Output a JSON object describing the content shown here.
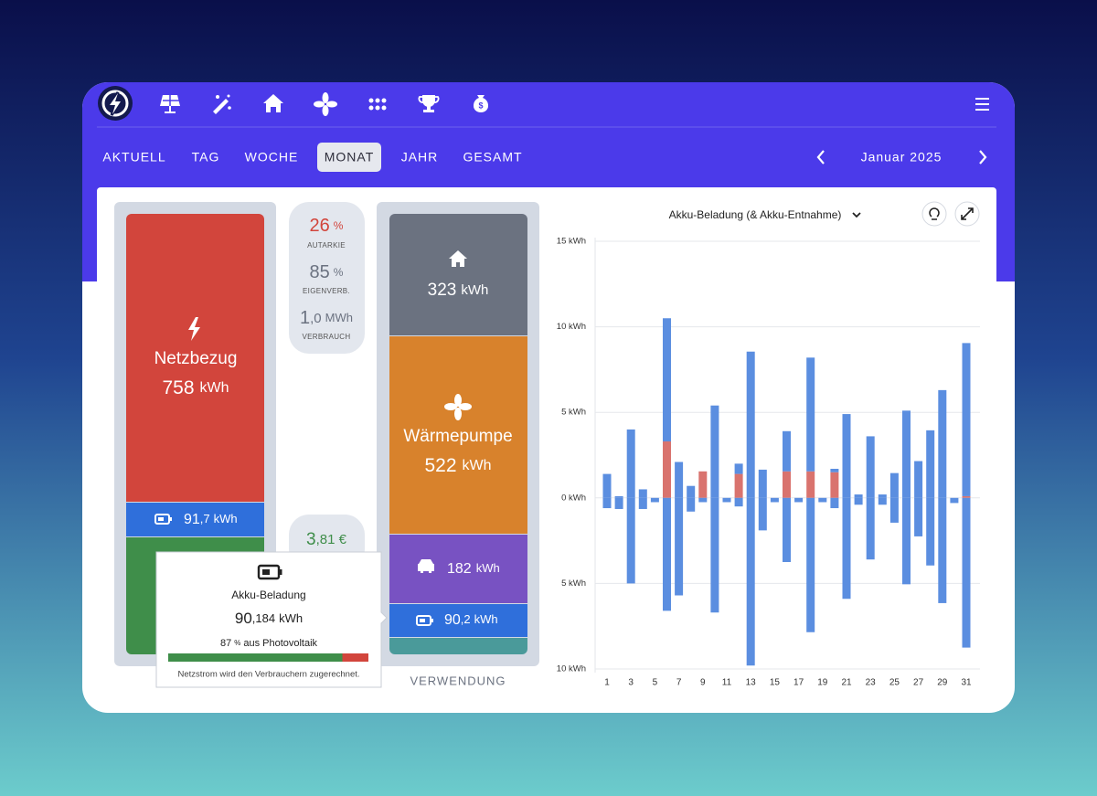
{
  "nav": {
    "tabs": [
      "AKTUELL",
      "TAG",
      "WOCHE",
      "MONAT",
      "JAHR",
      "GESAMT"
    ],
    "period": "Januar 2025"
  },
  "sources": {
    "title": "Netzbezug",
    "value": 758,
    "unit": "kWh",
    "battery": {
      "main": "91",
      "frac": ",7",
      "unit": "kWh"
    }
  },
  "stats": [
    {
      "main": 26,
      "unit": "%",
      "label": "AUTARKIE"
    },
    {
      "main": 85,
      "unit": "%",
      "label": "EIGENVERB."
    },
    {
      "main": "1",
      "frac": ",0",
      "unit": "MWh",
      "label": "VERBRAUCH"
    },
    {
      "main": "3",
      "frac": ",81 €"
    }
  ],
  "usage": {
    "label": "VERWENDUNG",
    "house": {
      "value": 323,
      "unit": "kWh"
    },
    "heatpump": {
      "title": "Wärmepumpe",
      "value": 522,
      "unit": "kWh"
    },
    "car": {
      "value": 182,
      "unit": "kWh"
    },
    "battery": {
      "main": "90",
      "frac": ",2",
      "unit": "kWh"
    }
  },
  "tooltip": {
    "title": "Akku-Beladung",
    "main": "90",
    "frac": ",184",
    "unit": "kWh",
    "share": 87,
    "share_unit": "%",
    "share_text": "aus Photovoltaik",
    "note": "Netzstrom wird den Verbrauchern zugerechnet."
  },
  "chart_data": {
    "type": "bar",
    "title": "Akku-Beladung (& Akku-Entnahme)",
    "stacked": true,
    "grid": true,
    "categories": [
      "1",
      null,
      "3",
      null,
      "5",
      null,
      "7",
      null,
      "9",
      null,
      "11",
      null,
      "13",
      null,
      "15",
      null,
      "17",
      null,
      "19",
      null,
      "21",
      null,
      "23",
      null,
      "25",
      null,
      "27",
      null,
      "29",
      null,
      "31"
    ],
    "series": [
      {
        "color": "#d9736e",
        "values": [
          0,
          0,
          0,
          0,
          0,
          3.3,
          0,
          0,
          1.55,
          0,
          0,
          1.4,
          0,
          0,
          0,
          1.55,
          0,
          1.55,
          0,
          1.5,
          0,
          0,
          0,
          0,
          0,
          0,
          0,
          0,
          0,
          0,
          0.1
        ]
      },
      {
        "color": "#5b8ee0",
        "values": [
          1.4,
          0.1,
          4.0,
          0.5,
          0,
          7.2,
          2.1,
          0.7,
          0,
          5.4,
          0,
          0.6,
          8.55,
          1.65,
          0,
          2.35,
          0,
          6.65,
          0,
          0.2,
          4.9,
          0.2,
          3.6,
          0.2,
          1.45,
          5.1,
          2.15,
          3.95,
          6.3,
          0,
          8.95
        ]
      },
      {
        "color": "#5b8ee0",
        "values": [
          -0.6,
          -0.65,
          -5.0,
          -0.65,
          -0.25,
          -6.6,
          -5.7,
          -0.8,
          -0.25,
          -6.7,
          -0.25,
          -0.5,
          -9.8,
          -1.9,
          -0.25,
          -3.75,
          -0.25,
          -7.85,
          -0.25,
          -0.6,
          -5.9,
          -0.4,
          -3.6,
          -0.4,
          -1.45,
          -5.05,
          -2.25,
          -3.95,
          -6.15,
          -0.3,
          -8.75
        ]
      }
    ],
    "ylim": [
      -10,
      15
    ],
    "yticks": [
      {
        "value": 15,
        "label": "15 kWh"
      },
      {
        "value": 10,
        "label": "10 kWh"
      },
      {
        "value": 5,
        "label": "5 kWh"
      },
      {
        "value": 0,
        "label": "0 kWh"
      },
      {
        "value": -5,
        "label": "5 kWh"
      },
      {
        "value": -10,
        "label": "10 kWh"
      }
    ]
  }
}
